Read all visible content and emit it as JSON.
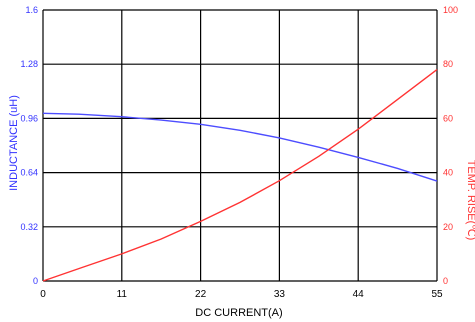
{
  "chart_data": {
    "type": "line",
    "xlabel": "DC CURRENT(A)",
    "ylabel_left": "INDUCTANCE (uH)",
    "ylabel_right": "TEMP. RISE(℃)",
    "x_ticks": [
      "0",
      "11",
      "22",
      "33",
      "44",
      "55"
    ],
    "y_left_ticks": [
      "0",
      "0.32",
      "0.64",
      "0.96",
      "1.28",
      "1.6"
    ],
    "y_right_ticks": [
      "0",
      "20",
      "40",
      "60",
      "80",
      "100"
    ],
    "xlim": [
      0,
      55
    ],
    "ylim_left": [
      0,
      1.6
    ],
    "ylim_right": [
      0,
      100
    ],
    "grid": true,
    "series": [
      {
        "axis": "left",
        "color": "#4d4dff",
        "x": [
          0,
          5,
          11,
          16.5,
          22,
          27.5,
          33,
          38.5,
          44,
          49.5,
          55
        ],
        "y": [
          0.99,
          0.985,
          0.97,
          0.95,
          0.925,
          0.89,
          0.845,
          0.79,
          0.73,
          0.665,
          0.59
        ]
      },
      {
        "axis": "right",
        "color": "#ff3333",
        "x": [
          0,
          5.5,
          11,
          16.5,
          22,
          27.5,
          33,
          38.5,
          44,
          49.5,
          55
        ],
        "y": [
          0,
          5,
          10,
          15.5,
          22,
          29,
          37,
          46,
          56,
          67,
          78
        ]
      }
    ],
    "colors": {
      "left_axis": "#3333ff",
      "right_axis": "#ff3333",
      "grid": "#000000",
      "x_axis_text": "#000000"
    }
  }
}
